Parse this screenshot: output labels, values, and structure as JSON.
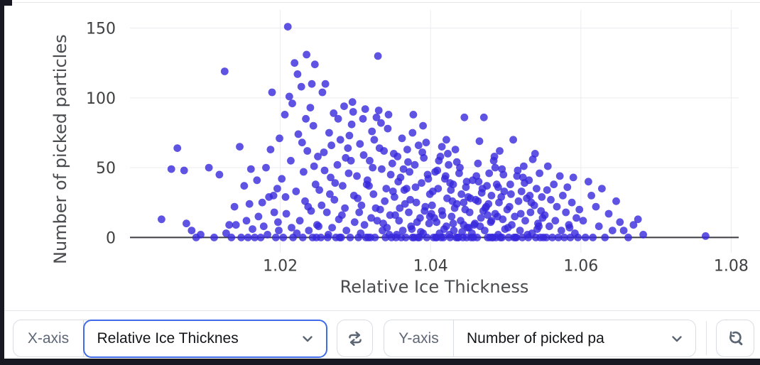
{
  "controls": {
    "x_axis": {
      "label": "X-axis",
      "value": "Relative Ice Thicknes",
      "focused": true
    },
    "y_axis": {
      "label": "Y-axis",
      "value": "Number of picked pa",
      "focused": false
    },
    "swap_button": {
      "icon": "swap-arrows"
    },
    "reset_zoom_button": {
      "icon": "magnifier-reset"
    },
    "accent_color": "#3f6be8",
    "border_color": "#d9dde3",
    "label_color": "#5d6675",
    "icon_color": "#5b6573"
  },
  "chart_data": {
    "type": "scatter",
    "title": "",
    "xlabel": "Relative Ice Thickness",
    "ylabel": "Number of picked particles",
    "xlim": [
      1.0,
      1.081
    ],
    "ylim": [
      -11,
      163
    ],
    "xticks": [
      1.02,
      1.04,
      1.06,
      1.08
    ],
    "yticks": [
      0,
      50,
      100,
      150
    ],
    "grid": true,
    "legend": "none",
    "gridline_color": "#ececf0",
    "zeroline_color": "#3c3d42",
    "marker_color": "#3728dc",
    "marker_opacity": 0.8,
    "marker_radius": 5.4,
    "points": [
      [
        1.0042,
        13
      ],
      [
        1.0055,
        49
      ],
      [
        1.0063,
        64
      ],
      [
        1.0072,
        48
      ],
      [
        1.0075,
        10
      ],
      [
        1.0082,
        5
      ],
      [
        1.0088,
        0
      ],
      [
        1.0094,
        2
      ],
      [
        1.0105,
        50
      ],
      [
        1.0112,
        0
      ],
      [
        1.0119,
        45
      ],
      [
        1.0126,
        119
      ],
      [
        1.0128,
        3
      ],
      [
        1.0132,
        9
      ],
      [
        1.0135,
        0
      ],
      [
        1.0139,
        22
      ],
      [
        1.0141,
        9
      ],
      [
        1.0146,
        65
      ],
      [
        1.0148,
        0
      ],
      [
        1.0152,
        37
      ],
      [
        1.0155,
        12
      ],
      [
        1.0157,
        0
      ],
      [
        1.0159,
        24
      ],
      [
        1.0161,
        49
      ],
      [
        1.0163,
        6
      ],
      [
        1.0166,
        0
      ],
      [
        1.0169,
        41
      ],
      [
        1.0171,
        15
      ],
      [
        1.0174,
        0
      ],
      [
        1.0176,
        25
      ],
      [
        1.0178,
        8
      ],
      [
        1.0181,
        50
      ],
      [
        1.0183,
        2
      ],
      [
        1.0185,
        29
      ],
      [
        1.0187,
        63
      ],
      [
        1.0189,
        104
      ],
      [
        1.0191,
        30
      ],
      [
        1.0192,
        18
      ],
      [
        1.0194,
        0
      ],
      [
        1.0196,
        35
      ],
      [
        1.0197,
        11
      ],
      [
        1.0198,
        5
      ],
      [
        1.0199,
        71
      ],
      [
        1.0202,
        42
      ],
      [
        1.0204,
        0
      ],
      [
        1.0206,
        88
      ],
      [
        1.0208,
        17
      ],
      [
        1.021,
        151
      ],
      [
        1.0212,
        101
      ],
      [
        1.0214,
        55
      ],
      [
        1.0215,
        7
      ],
      [
        1.0217,
        0
      ],
      [
        1.0219,
        125
      ],
      [
        1.0221,
        33
      ],
      [
        1.0223,
        117
      ],
      [
        1.0224,
        74
      ],
      [
        1.0226,
        12
      ],
      [
        1.0228,
        108
      ],
      [
        1.023,
        0
      ],
      [
        1.0231,
        47
      ],
      [
        1.0233,
        26
      ],
      [
        1.0235,
        131
      ],
      [
        1.0236,
        62
      ],
      [
        1.0238,
        5
      ],
      [
        1.024,
        93
      ],
      [
        1.0241,
        19
      ],
      [
        1.0243,
        0
      ],
      [
        1.0244,
        80
      ],
      [
        1.0246,
        124
      ],
      [
        1.0247,
        38
      ],
      [
        1.0249,
        9
      ],
      [
        1.025,
        58
      ],
      [
        1.0207,
        29
      ],
      [
        1.0216,
        96
      ],
      [
        1.0222,
        3
      ],
      [
        1.0229,
        68
      ],
      [
        1.0237,
        22
      ],
      [
        1.0242,
        110
      ],
      [
        1.0245,
        51
      ],
      [
        1.0248,
        0
      ],
      [
        1.0234,
        85
      ],
      [
        1.0252,
        34
      ],
      [
        1.0254,
        0
      ],
      [
        1.0256,
        104
      ],
      [
        1.0258,
        61
      ],
      [
        1.026,
        110
      ],
      [
        1.0262,
        18
      ],
      [
        1.0263,
        0
      ],
      [
        1.0265,
        75
      ],
      [
        1.0267,
        43
      ],
      [
        1.0269,
        7
      ],
      [
        1.0271,
        89
      ],
      [
        1.0272,
        27
      ],
      [
        1.0274,
        0
      ],
      [
        1.0276,
        52
      ],
      [
        1.0278,
        13
      ],
      [
        1.028,
        70
      ],
      [
        1.0281,
        0
      ],
      [
        1.0283,
        37
      ],
      [
        1.0285,
        94
      ],
      [
        1.0286,
        21
      ],
      [
        1.0288,
        5
      ],
      [
        1.029,
        64
      ],
      [
        1.0291,
        46
      ],
      [
        1.0293,
        0
      ],
      [
        1.0295,
        81
      ],
      [
        1.0296,
        97
      ],
      [
        1.0298,
        30
      ],
      [
        1.0299,
        11
      ],
      [
        1.0255,
        23
      ],
      [
        1.0259,
        48
      ],
      [
        1.0264,
        2
      ],
      [
        1.0268,
        66
      ],
      [
        1.0273,
        39
      ],
      [
        1.0277,
        85
      ],
      [
        1.0282,
        16
      ],
      [
        1.0287,
        57
      ],
      [
        1.0292,
        73
      ],
      [
        1.0297,
        90
      ],
      [
        1.0251,
        8
      ],
      [
        1.0266,
        31
      ],
      [
        1.0279,
        0
      ],
      [
        1.0294,
        55
      ],
      [
        1.0302,
        44
      ],
      [
        1.0304,
        0
      ],
      [
        1.0306,
        67
      ],
      [
        1.0308,
        23
      ],
      [
        1.031,
        85
      ],
      [
        1.0312,
        9
      ],
      [
        1.0313,
        92
      ],
      [
        1.0315,
        38
      ],
      [
        1.0317,
        0
      ],
      [
        1.0319,
        55
      ],
      [
        1.0321,
        14
      ],
      [
        1.0322,
        76
      ],
      [
        1.0324,
        31
      ],
      [
        1.0326,
        0
      ],
      [
        1.0328,
        86
      ],
      [
        1.033,
        130
      ],
      [
        1.0331,
        91
      ],
      [
        1.0333,
        20
      ],
      [
        1.0335,
        49
      ],
      [
        1.0336,
        5
      ],
      [
        1.0338,
        62
      ],
      [
        1.034,
        0
      ],
      [
        1.0341,
        35
      ],
      [
        1.0343,
        78
      ],
      [
        1.0344,
        88
      ],
      [
        1.0346,
        16
      ],
      [
        1.0348,
        0
      ],
      [
        1.0349,
        53
      ],
      [
        1.0303,
        28
      ],
      [
        1.0307,
        3
      ],
      [
        1.0311,
        59
      ],
      [
        1.0316,
        41
      ],
      [
        1.032,
        0
      ],
      [
        1.0325,
        70
      ],
      [
        1.0329,
        12
      ],
      [
        1.0334,
        82
      ],
      [
        1.0339,
        26
      ],
      [
        1.0342,
        7
      ],
      [
        1.0347,
        45
      ],
      [
        1.035,
        33
      ],
      [
        1.0305,
        18
      ],
      [
        1.0314,
        0
      ],
      [
        1.0323,
        50
      ],
      [
        1.0332,
        64
      ],
      [
        1.0337,
        10
      ],
      [
        1.0345,
        2
      ],
      [
        1.0318,
        37
      ],
      [
        1.0327,
        21
      ],
      [
        1.0352,
        29
      ],
      [
        1.0354,
        0
      ],
      [
        1.0356,
        58
      ],
      [
        1.0358,
        12
      ],
      [
        1.036,
        43
      ],
      [
        1.0362,
        71
      ],
      [
        1.0363,
        5
      ],
      [
        1.0365,
        34
      ],
      [
        1.0367,
        0
      ],
      [
        1.0369,
        63
      ],
      [
        1.0371,
        18
      ],
      [
        1.0372,
        47
      ],
      [
        1.0374,
        8
      ],
      [
        1.0376,
        0
      ],
      [
        1.0377,
        88
      ],
      [
        1.0379,
        52
      ],
      [
        1.0381,
        25
      ],
      [
        1.0383,
        0
      ],
      [
        1.0384,
        66
      ],
      [
        1.0386,
        14
      ],
      [
        1.0388,
        39
      ],
      [
        1.039,
        3
      ],
      [
        1.0391,
        57
      ],
      [
        1.0393,
        22
      ],
      [
        1.0395,
        0
      ],
      [
        1.0396,
        45
      ],
      [
        1.0398,
        10
      ],
      [
        1.0399,
        31
      ],
      [
        1.0353,
        16
      ],
      [
        1.0357,
        40
      ],
      [
        1.0361,
        0
      ],
      [
        1.0366,
        24
      ],
      [
        1.037,
        54
      ],
      [
        1.0375,
        6
      ],
      [
        1.038,
        36
      ],
      [
        1.0385,
        0
      ],
      [
        1.0389,
        61
      ],
      [
        1.0392,
        19
      ],
      [
        1.0397,
        42
      ],
      [
        1.0355,
        2
      ],
      [
        1.0364,
        49
      ],
      [
        1.0373,
        27
      ],
      [
        1.0382,
        11
      ],
      [
        1.0387,
        4
      ],
      [
        1.0394,
        68
      ],
      [
        1.0359,
        21
      ],
      [
        1.0368,
        35
      ],
      [
        1.0378,
        0
      ],
      [
        1.0351,
        60
      ],
      [
        1.0399,
        15
      ],
      [
        1.0376,
        75
      ],
      [
        1.039,
        80
      ],
      [
        1.0402,
        23
      ],
      [
        1.0404,
        0
      ],
      [
        1.0406,
        47
      ],
      [
        1.0408,
        11
      ],
      [
        1.041,
        35
      ],
      [
        1.0412,
        3
      ],
      [
        1.0413,
        58
      ],
      [
        1.0415,
        19
      ],
      [
        1.0417,
        0
      ],
      [
        1.0419,
        42
      ],
      [
        1.0421,
        8
      ],
      [
        1.0422,
        28
      ],
      [
        1.0424,
        52
      ],
      [
        1.0426,
        0
      ],
      [
        1.0428,
        15
      ],
      [
        1.043,
        38
      ],
      [
        1.0431,
        5
      ],
      [
        1.0433,
        63
      ],
      [
        1.0435,
        24
      ],
      [
        1.0436,
        0
      ],
      [
        1.0438,
        46
      ],
      [
        1.044,
        12
      ],
      [
        1.0441,
        31
      ],
      [
        1.0443,
        0
      ],
      [
        1.0445,
        86
      ],
      [
        1.0446,
        20
      ],
      [
        1.0448,
        40
      ],
      [
        1.0449,
        7
      ],
      [
        1.0403,
        33
      ],
      [
        1.0407,
        0
      ],
      [
        1.0411,
        55
      ],
      [
        1.0416,
        16
      ],
      [
        1.042,
        44
      ],
      [
        1.0425,
        2
      ],
      [
        1.0429,
        26
      ],
      [
        1.0434,
        0
      ],
      [
        1.0439,
        50
      ],
      [
        1.0444,
        9
      ],
      [
        1.0447,
        36
      ],
      [
        1.0405,
        14
      ],
      [
        1.0414,
        0
      ],
      [
        1.0423,
        60
      ],
      [
        1.0432,
        21
      ],
      [
        1.0442,
        4
      ],
      [
        1.045,
        29
      ],
      [
        1.0409,
        48
      ],
      [
        1.0418,
        6
      ],
      [
        1.0427,
        34
      ],
      [
        1.0437,
        0
      ],
      [
        1.0401,
        17
      ],
      [
        1.0421,
        70
      ],
      [
        1.0435,
        54
      ],
      [
        1.0444,
        25
      ],
      [
        1.0408,
        0
      ],
      [
        1.043,
        10
      ],
      [
        1.0415,
        65
      ],
      [
        1.0426,
        39
      ],
      [
        1.0448,
        0
      ],
      [
        1.0452,
        18
      ],
      [
        1.0454,
        0
      ],
      [
        1.0456,
        41
      ],
      [
        1.0458,
        9
      ],
      [
        1.046,
        27
      ],
      [
        1.0462,
        0
      ],
      [
        1.0463,
        53
      ],
      [
        1.0465,
        69
      ],
      [
        1.0467,
        14
      ],
      [
        1.0469,
        35
      ],
      [
        1.0471,
        86
      ],
      [
        1.0472,
        5
      ],
      [
        1.0474,
        22
      ],
      [
        1.0476,
        0
      ],
      [
        1.0478,
        46
      ],
      [
        1.048,
        11
      ],
      [
        1.0481,
        30
      ],
      [
        1.0483,
        0
      ],
      [
        1.0485,
        58
      ],
      [
        1.0486,
        17
      ],
      [
        1.0488,
        38
      ],
      [
        1.049,
        2
      ],
      [
        1.0491,
        25
      ],
      [
        1.0493,
        0
      ],
      [
        1.0495,
        49
      ],
      [
        1.0496,
        13
      ],
      [
        1.0498,
        33
      ],
      [
        1.0499,
        6
      ],
      [
        1.0453,
        28
      ],
      [
        1.0457,
        0
      ],
      [
        1.0461,
        44
      ],
      [
        1.0466,
        8
      ],
      [
        1.047,
        19
      ],
      [
        1.0475,
        37
      ],
      [
        1.0479,
        0
      ],
      [
        1.0484,
        55
      ],
      [
        1.0489,
        15
      ],
      [
        1.0494,
        29
      ],
      [
        1.0455,
        3
      ],
      [
        1.0464,
        40
      ],
      [
        1.0473,
        21
      ],
      [
        1.0482,
        0
      ],
      [
        1.0492,
        62
      ],
      [
        1.0459,
        10
      ],
      [
        1.0468,
        32
      ],
      [
        1.0477,
        24
      ],
      [
        1.0487,
        0
      ],
      [
        1.0497,
        45
      ],
      [
        1.0451,
        7
      ],
      [
        1.0476,
        16
      ],
      [
        1.0486,
        50
      ],
      [
        1.0495,
        0
      ],
      [
        1.0463,
        26
      ],
      [
        1.0481,
        12
      ],
      [
        1.049,
        36
      ],
      [
        1.0502,
        20
      ],
      [
        1.0504,
        0
      ],
      [
        1.0506,
        38
      ],
      [
        1.0508,
        9
      ],
      [
        1.051,
        70
      ],
      [
        1.0512,
        15
      ],
      [
        1.0513,
        0
      ],
      [
        1.0515,
        44
      ],
      [
        1.0517,
        26
      ],
      [
        1.0519,
        5
      ],
      [
        1.0521,
        33
      ],
      [
        1.0522,
        0
      ],
      [
        1.0524,
        51
      ],
      [
        1.0526,
        12
      ],
      [
        1.0528,
        28
      ],
      [
        1.053,
        0
      ],
      [
        1.0531,
        41
      ],
      [
        1.0533,
        18
      ],
      [
        1.0535,
        3
      ],
      [
        1.0536,
        56
      ],
      [
        1.0538,
        23
      ],
      [
        1.054,
        0
      ],
      [
        1.0541,
        35
      ],
      [
        1.0543,
        10
      ],
      [
        1.0545,
        46
      ],
      [
        1.0546,
        0
      ],
      [
        1.0548,
        29
      ],
      [
        1.0549,
        14
      ],
      [
        1.0503,
        7
      ],
      [
        1.0507,
        31
      ],
      [
        1.0511,
        0
      ],
      [
        1.0516,
        48
      ],
      [
        1.052,
        17
      ],
      [
        1.0525,
        39
      ],
      [
        1.0529,
        2
      ],
      [
        1.0534,
        25
      ],
      [
        1.0539,
        60
      ],
      [
        1.0544,
        8
      ],
      [
        1.0505,
        22
      ],
      [
        1.0514,
        0
      ],
      [
        1.0523,
        43
      ],
      [
        1.0532,
        30
      ],
      [
        1.0542,
        6
      ],
      [
        1.0547,
        19
      ],
      [
        1.055,
        0
      ],
      [
        1.0552,
        16
      ],
      [
        1.0554,
        0
      ],
      [
        1.0556,
        51
      ],
      [
        1.0558,
        8
      ],
      [
        1.056,
        27
      ],
      [
        1.0562,
        0
      ],
      [
        1.0564,
        38
      ],
      [
        1.0566,
        12
      ],
      [
        1.0568,
        22
      ],
      [
        1.057,
        0
      ],
      [
        1.0572,
        44
      ],
      [
        1.0574,
        5
      ],
      [
        1.0576,
        30
      ],
      [
        1.0578,
        0
      ],
      [
        1.058,
        18
      ],
      [
        1.0582,
        36
      ],
      [
        1.0584,
        9
      ],
      [
        1.0586,
        0
      ],
      [
        1.0588,
        25
      ],
      [
        1.059,
        43
      ],
      [
        1.0592,
        3
      ],
      [
        1.0594,
        14
      ],
      [
        1.0596,
        0
      ],
      [
        1.0598,
        20
      ],
      [
        1.0555,
        34
      ],
      [
        1.0585,
        7
      ],
      [
        1.0603,
        12
      ],
      [
        1.0606,
        0
      ],
      [
        1.061,
        40
      ],
      [
        1.0614,
        30
      ],
      [
        1.0616,
        0
      ],
      [
        1.062,
        22
      ],
      [
        1.0624,
        8
      ],
      [
        1.0628,
        35
      ],
      [
        1.0632,
        0
      ],
      [
        1.0637,
        17
      ],
      [
        1.0642,
        5
      ],
      [
        1.0647,
        26
      ],
      [
        1.0652,
        11
      ],
      [
        1.0657,
        5
      ],
      [
        1.0663,
        0
      ],
      [
        1.067,
        9
      ],
      [
        1.0676,
        13
      ],
      [
        1.0683,
        2
      ],
      [
        1.0766,
        1
      ]
    ]
  }
}
